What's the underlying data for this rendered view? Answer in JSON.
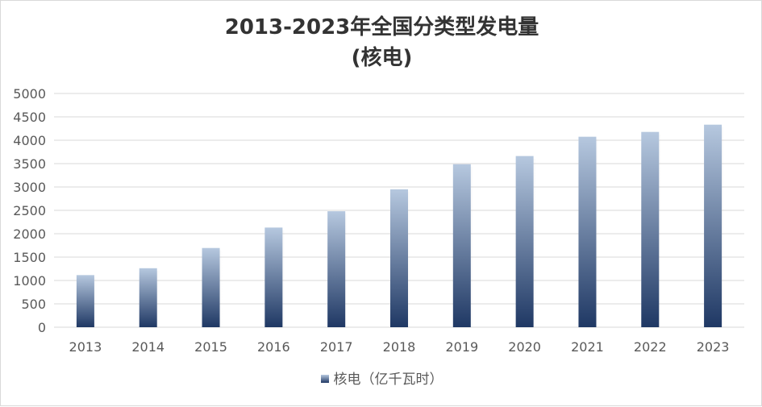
{
  "chart_data": {
    "type": "bar",
    "title": "2013-2023年全国分类型发电量",
    "subtitle": "(核电)",
    "categories": [
      "2013",
      "2014",
      "2015",
      "2016",
      "2017",
      "2018",
      "2019",
      "2020",
      "2021",
      "2022",
      "2023"
    ],
    "series": [
      {
        "name": "核电（亿千瓦时）",
        "values": [
          1115,
          1262,
          1695,
          2132,
          2481,
          2950,
          3487,
          3662,
          4075,
          4178,
          4333
        ]
      }
    ],
    "ylim": [
      0,
      5000
    ],
    "yticks": [
      0,
      500,
      1000,
      1500,
      2000,
      2500,
      3000,
      3500,
      4000,
      4500,
      5000
    ],
    "grid": true,
    "legend_position": "bottom",
    "bar_gradient": {
      "top": "#b6c8df",
      "bottom": "#1f3864"
    },
    "grid_color": "#d9d9d9",
    "text_color": "#595959"
  }
}
